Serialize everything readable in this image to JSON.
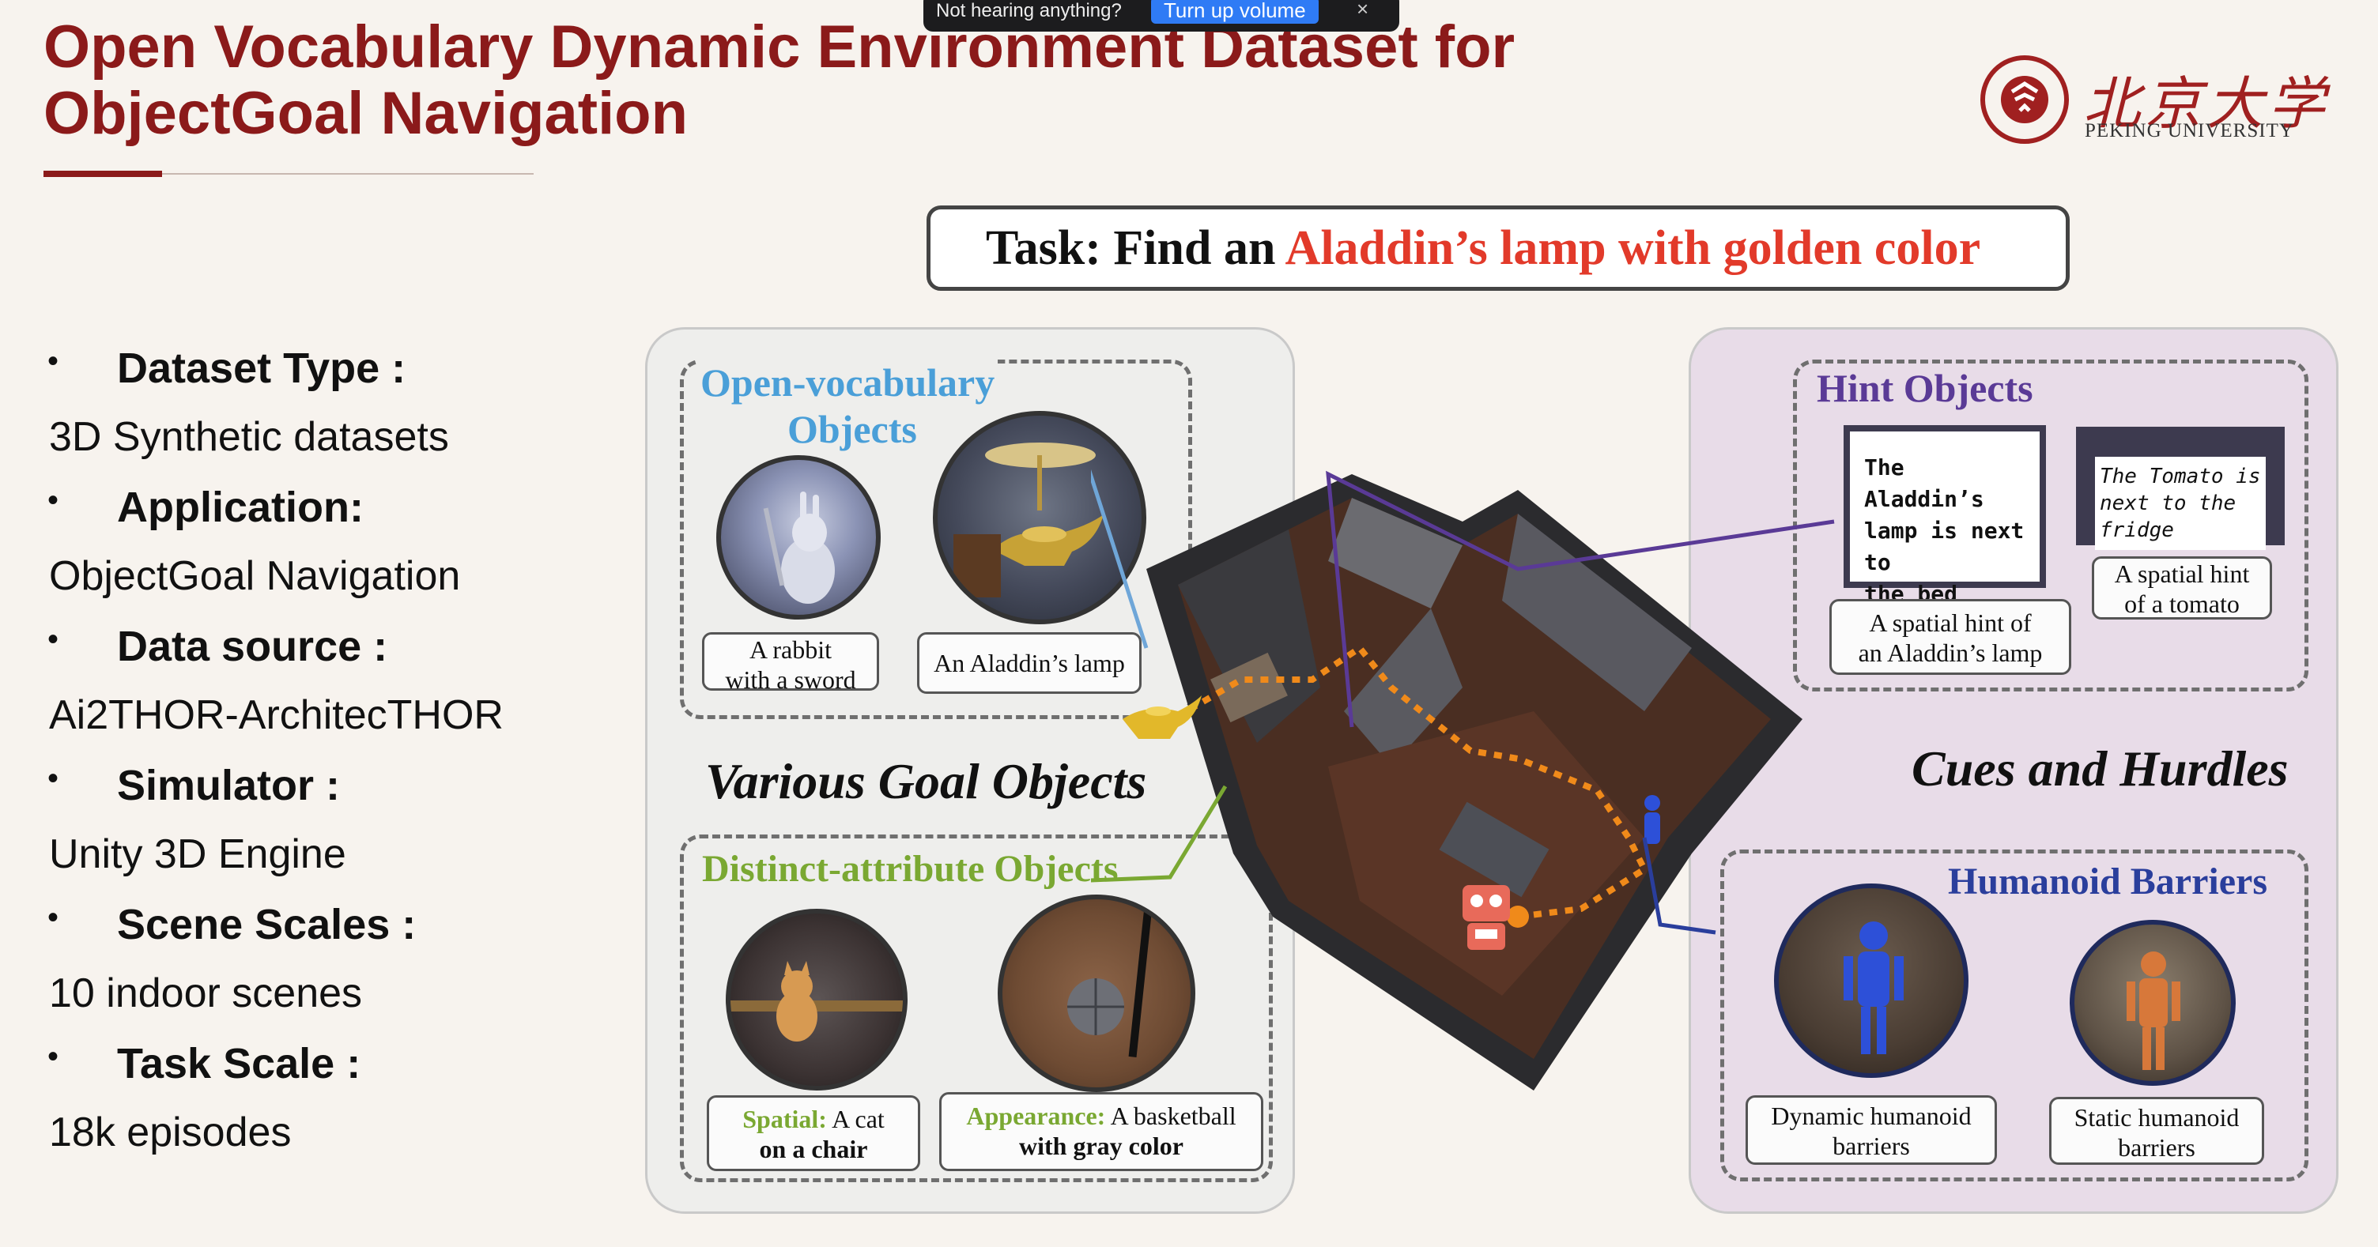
{
  "title_lines": [
    "Open Vocabulary Dynamic Environment Dataset for",
    "ObjectGoal Navigation"
  ],
  "logo": {
    "chinese": "北京大学",
    "english": "PEKING UNIVERSITY"
  },
  "toast": {
    "text": "Not hearing anything?",
    "button": "Turn up volume",
    "close": "×"
  },
  "bullets": [
    {
      "label": "Dataset Type :",
      "value": "3D Synthetic datasets"
    },
    {
      "label": "Application:",
      "value": "ObjectGoal Navigation"
    },
    {
      "label": "Data source :",
      "value": "Ai2THOR-ArchitecTHOR"
    },
    {
      "label": "Simulator :",
      "value": "Unity 3D Engine"
    },
    {
      "label": "Scene Scales :",
      "value": "10 indoor scenes"
    },
    {
      "label": "Task Scale :",
      "value": "18k episodes"
    }
  ],
  "bullet_symbol": "•",
  "task": {
    "prefix": "Task: Find an ",
    "highlight": "Aladdin’s lamp with golden color"
  },
  "left_panel": {
    "open_vocab_title_1": "Open-vocabulary",
    "open_vocab_title_2": "Objects",
    "rabbit_caption_1": "A rabbit",
    "rabbit_caption_2": "with a sword",
    "lamp_caption": "An Aladdin’s lamp",
    "center_title": "Various Goal Objects",
    "distinct_title": "Distinct-attribute Objects",
    "cat_caption_label": "Spatial:",
    "cat_caption_1": " A cat",
    "cat_caption_2": "on a chair",
    "ball_caption_label": "Appearance:",
    "ball_caption_1": " A basketball",
    "ball_caption_2": "with gray color"
  },
  "right_panel": {
    "hint_title": "Hint Objects",
    "note1_lines": [
      "The Aladdin’s",
      "lamp is next to",
      "the bed"
    ],
    "note2_lines": [
      "The  Tomato  is",
      "next to  the  fridge"
    ],
    "note1_caption_1": "A spatial hint of",
    "note1_caption_2": "an Aladdin’s lamp",
    "note2_caption_1": "A spatial hint",
    "note2_caption_2": "of a tomato",
    "center_title": "Cues and Hurdles",
    "humanoid_title": "Humanoid Barriers",
    "dyn_caption_1": "Dynamic humanoid",
    "dyn_caption_2": "barriers",
    "static_caption_1": "Static humanoid",
    "static_caption_2": "barriers"
  },
  "colors": {
    "title": "#8b1a1a",
    "task_highlight": "#e23a2a",
    "open_vocab": "#4a9fd8",
    "distinct": "#7aa832",
    "hint": "#5a3a96",
    "humanoid": "#2a3e9c",
    "path": "#f08a1a"
  }
}
